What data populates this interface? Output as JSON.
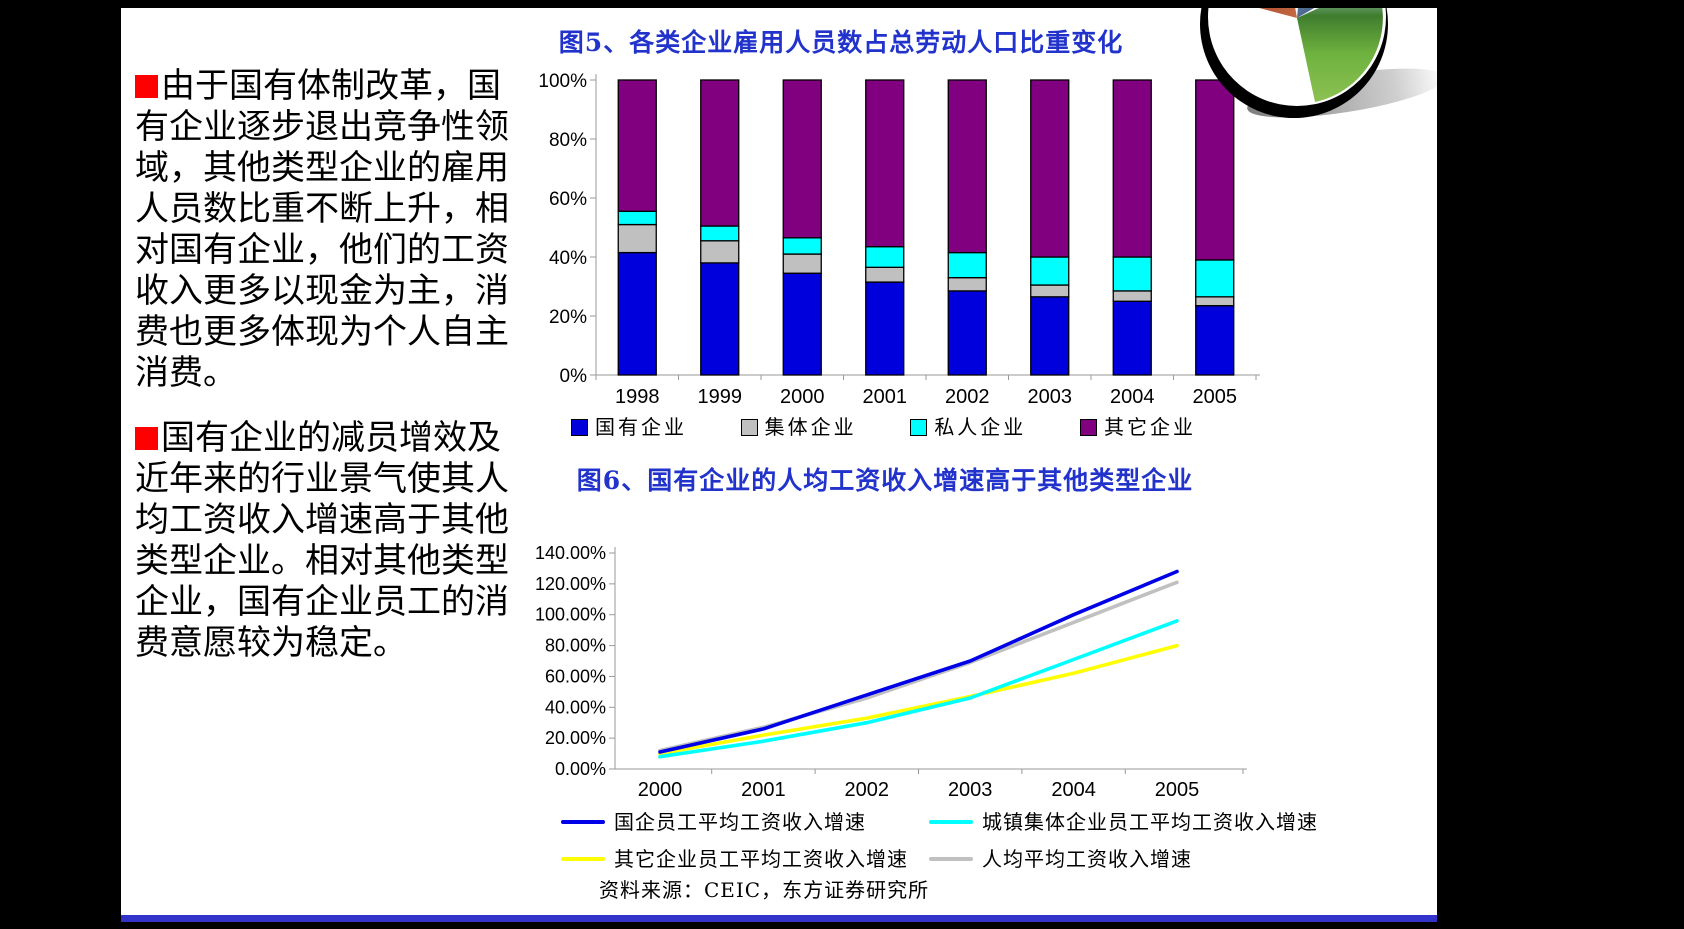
{
  "page": {
    "background": "#000000",
    "slide_background": "#FFFFFF",
    "title_color": "#2233CC",
    "bullet_square_color": "#FF0000",
    "bottom_strip_color": "#3333CC"
  },
  "bullets": [
    "由于国有体制改革，国有企业逐步退出竞争性领域，其他类型企业的雇用人员数比重不断上升，相对国有企业，他们的工资收入更多以现金为主，消费也更多体现为个人自主消费。",
    "国有企业的减员增效及近年来的行业景气使其人均工资收入增速高于其他类型企业。相对其他类型企业，国有企业员工的消费意愿较为稳定。"
  ],
  "source_note": "资料来源：CEIC，东方证券研究所",
  "logo_icon": "photo-globe-logo",
  "chart_data": [
    {
      "type": "bar",
      "stacked": true,
      "title": "图5、各类企业雇用人员数占总劳动人口比重变化",
      "categories": [
        "1998",
        "1999",
        "2000",
        "2001",
        "2002",
        "2003",
        "2004",
        "2005"
      ],
      "series": [
        {
          "name": "国有企业",
          "color": "#0000DD",
          "values": [
            41.5,
            38,
            34.5,
            31.5,
            28.5,
            26.5,
            25,
            23.5
          ]
        },
        {
          "name": "集体企业",
          "color": "#C0C0C0",
          "values": [
            9.5,
            7.5,
            6.5,
            5,
            4.5,
            4,
            3.5,
            3
          ]
        },
        {
          "name": "私人企业",
          "color": "#00FFFF",
          "values": [
            4.5,
            5,
            5.5,
            7,
            8.5,
            9.5,
            11.5,
            12.5
          ]
        },
        {
          "name": "其它企业",
          "color": "#800080",
          "values": [
            44.5,
            49.5,
            53.5,
            56.5,
            58.5,
            60,
            60,
            61
          ]
        }
      ],
      "ylim": [
        0,
        100
      ],
      "yticks": [
        "0%",
        "20%",
        "40%",
        "60%",
        "80%",
        "100%"
      ],
      "xlabel": "",
      "ylabel": "",
      "grid": false,
      "legend_position": "bottom"
    },
    {
      "type": "line",
      "title": "图6、国有企业的人均工资收入增速高于其他类型企业",
      "x": [
        "2000",
        "2001",
        "2002",
        "2003",
        "2004",
        "2005"
      ],
      "series": [
        {
          "name": "国企员工平均工资收入增速",
          "color": "#0000E8",
          "values": [
            11,
            26,
            48,
            70,
            100,
            128
          ]
        },
        {
          "name": "城镇集体企业员工平均工资收入增速",
          "color": "#00FFFF",
          "values": [
            8,
            18,
            30,
            46,
            71,
            96
          ]
        },
        {
          "name": "其它企业员工平均工资收入增速",
          "color": "#FFFF00",
          "values": [
            10,
            22,
            33,
            47,
            62,
            80
          ]
        },
        {
          "name": "人均平均工资收入增速",
          "color": "#C0C0C0",
          "values": [
            12,
            27,
            46,
            69,
            95,
            121
          ]
        }
      ],
      "ylim": [
        0,
        140
      ],
      "yticks": [
        "0.00%",
        "20.00%",
        "40.00%",
        "60.00%",
        "80.00%",
        "100.00%",
        "120.00%",
        "140.00%"
      ],
      "xlabel": "",
      "ylabel": "",
      "grid": false,
      "legend_position": "bottom"
    }
  ]
}
